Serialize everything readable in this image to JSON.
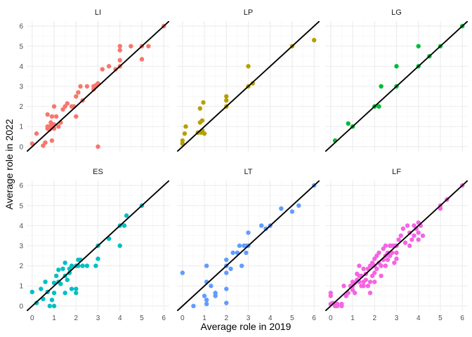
{
  "chart_data": {
    "type": "scatter",
    "xlabel": "Average role in 2019",
    "ylabel": "Average role in 2022",
    "xlim": [
      -0.25,
      6.25
    ],
    "ylim": [
      -0.25,
      6.25
    ],
    "x_ticks": [
      "0",
      "1",
      "2",
      "3",
      "4",
      "5",
      "6"
    ],
    "y_ticks": [
      "0",
      "1",
      "2",
      "3",
      "4",
      "5",
      "6"
    ],
    "reference_line": "y = x",
    "layout": "2 rows x 3 columns facets",
    "facets": [
      {
        "label": "LI",
        "color": "#F8766D",
        "points": [
          [
            0,
            0.15
          ],
          [
            0.2,
            0.65
          ],
          [
            0.5,
            0.05
          ],
          [
            0.6,
            0.2
          ],
          [
            0.7,
            0.9
          ],
          [
            0.7,
            1.0
          ],
          [
            0.7,
            1.6
          ],
          [
            0.8,
            0.85
          ],
          [
            0.8,
            1.0
          ],
          [
            0.85,
            1.2
          ],
          [
            0.9,
            0.3
          ],
          [
            0.9,
            1.5
          ],
          [
            0.9,
            1.0
          ],
          [
            1.0,
            1.1
          ],
          [
            1.0,
            0.9
          ],
          [
            1.0,
            2.0
          ],
          [
            1.1,
            1.5
          ],
          [
            1.2,
            1.0
          ],
          [
            1.3,
            1.2
          ],
          [
            1.4,
            1.85
          ],
          [
            1.5,
            2.0
          ],
          [
            1.6,
            2.15
          ],
          [
            1.8,
            2.0
          ],
          [
            1.9,
            2.0
          ],
          [
            2.0,
            1.5
          ],
          [
            2.0,
            2.5
          ],
          [
            2.1,
            2.7
          ],
          [
            2.2,
            3.0
          ],
          [
            2.3,
            2.3
          ],
          [
            2.5,
            3.0
          ],
          [
            2.8,
            2.85
          ],
          [
            2.8,
            3.0
          ],
          [
            2.9,
            3.0
          ],
          [
            2.9,
            3.05
          ],
          [
            3.0,
            3.15
          ],
          [
            3.0,
            0.0
          ],
          [
            3.2,
            3.85
          ],
          [
            3.5,
            4.0
          ],
          [
            3.8,
            3.85
          ],
          [
            4.0,
            4.0
          ],
          [
            4.0,
            4.3
          ],
          [
            4.0,
            4.8
          ],
          [
            4.0,
            5.0
          ],
          [
            4.5,
            5.0
          ],
          [
            5.0,
            4.35
          ],
          [
            5.0,
            5.0
          ],
          [
            5.3,
            5.0
          ],
          [
            6.0,
            6.0
          ]
        ]
      },
      {
        "label": "LP",
        "color": "#B79F00",
        "points": [
          [
            0,
            0.15
          ],
          [
            0,
            0.3
          ],
          [
            0.1,
            0.65
          ],
          [
            0.15,
            1.0
          ],
          [
            0.7,
            0.7
          ],
          [
            0.8,
            1.2
          ],
          [
            0.8,
            1.9
          ],
          [
            0.85,
            0.7
          ],
          [
            0.9,
            0.8
          ],
          [
            0.9,
            1.3
          ],
          [
            0.95,
            2.2
          ],
          [
            1.0,
            0.65
          ],
          [
            2.0,
            2.0
          ],
          [
            2.0,
            2.3
          ],
          [
            2.0,
            2.5
          ],
          [
            3.0,
            3.0
          ],
          [
            3.0,
            4.0
          ],
          [
            3.2,
            3.15
          ],
          [
            5.0,
            5.0
          ],
          [
            6.0,
            5.3
          ]
        ]
      },
      {
        "label": "LG",
        "color": "#00BA38",
        "points": [
          [
            0.2,
            0.3
          ],
          [
            0.8,
            1.15
          ],
          [
            1.0,
            1.0
          ],
          [
            2.0,
            2.0
          ],
          [
            2.2,
            2.0
          ],
          [
            2.3,
            3.0
          ],
          [
            3.0,
            3.0
          ],
          [
            3.0,
            4.0
          ],
          [
            4.0,
            4.0
          ],
          [
            4.0,
            5.0
          ],
          [
            4.5,
            4.5
          ],
          [
            5.0,
            5.0
          ],
          [
            6.0,
            6.0
          ]
        ]
      },
      {
        "label": "ES",
        "color": "#00BFC4",
        "points": [
          [
            0,
            0.7
          ],
          [
            0.2,
            0.15
          ],
          [
            0.4,
            0.85
          ],
          [
            0.5,
            0.35
          ],
          [
            0.6,
            1.2
          ],
          [
            0.7,
            0.7
          ],
          [
            0.8,
            0.0
          ],
          [
            0.9,
            0.3
          ],
          [
            1.0,
            0.65
          ],
          [
            1.0,
            1.15
          ],
          [
            1.0,
            0.0
          ],
          [
            1.1,
            1.5
          ],
          [
            1.2,
            1.8
          ],
          [
            1.2,
            1.2
          ],
          [
            1.3,
            1.1
          ],
          [
            1.4,
            1.85
          ],
          [
            1.5,
            0.65
          ],
          [
            1.5,
            1.5
          ],
          [
            1.5,
            2.15
          ],
          [
            1.6,
            1.3
          ],
          [
            1.7,
            1.65
          ],
          [
            1.7,
            1.85
          ],
          [
            1.8,
            0.85
          ],
          [
            1.8,
            2.0
          ],
          [
            2.0,
            2.0
          ],
          [
            2.0,
            0.85
          ],
          [
            2.0,
            0.65
          ],
          [
            2.1,
            2.3
          ],
          [
            2.1,
            2.0
          ],
          [
            2.2,
            2.3
          ],
          [
            2.3,
            2.0
          ],
          [
            2.5,
            2.0
          ],
          [
            2.9,
            2.0
          ],
          [
            3.0,
            2.35
          ],
          [
            3.0,
            3.0
          ],
          [
            3.5,
            3.35
          ],
          [
            4.0,
            3.0
          ],
          [
            4.0,
            4.0
          ],
          [
            4.2,
            4.0
          ],
          [
            4.3,
            4.5
          ],
          [
            5.0,
            5.0
          ]
        ]
      },
      {
        "label": "LT",
        "color": "#619CFF",
        "points": [
          [
            0,
            1.65
          ],
          [
            0.5,
            0.0
          ],
          [
            1.0,
            0.5
          ],
          [
            1.1,
            0.1
          ],
          [
            1.1,
            0.3
          ],
          [
            1.1,
            1.2
          ],
          [
            1.1,
            2.0
          ],
          [
            1.3,
            1.0
          ],
          [
            1.5,
            0.65
          ],
          [
            1.5,
            0.5
          ],
          [
            2.0,
            0.15
          ],
          [
            2.0,
            0.85
          ],
          [
            2.0,
            1.65
          ],
          [
            2.0,
            2.0
          ],
          [
            2.0,
            2.3
          ],
          [
            2.2,
            1.85
          ],
          [
            2.3,
            2.65
          ],
          [
            2.5,
            2.65
          ],
          [
            2.6,
            3.0
          ],
          [
            2.7,
            2.0
          ],
          [
            2.8,
            3.0
          ],
          [
            2.9,
            3.0
          ],
          [
            2.9,
            2.65
          ],
          [
            3.0,
            3.0
          ],
          [
            3.0,
            3.65
          ],
          [
            3.6,
            4.0
          ],
          [
            3.8,
            3.85
          ],
          [
            4.0,
            4.0
          ],
          [
            4.5,
            4.85
          ],
          [
            5.0,
            4.7
          ],
          [
            5.3,
            5.0
          ],
          [
            6.0,
            6.0
          ]
        ]
      },
      {
        "label": "LF",
        "color": "#F564E3",
        "points": [
          [
            0,
            0.1
          ],
          [
            0,
            0.5
          ],
          [
            0,
            0.65
          ],
          [
            0.1,
            0.15
          ],
          [
            0.2,
            0
          ],
          [
            0.3,
            0.1
          ],
          [
            0.3,
            0.0
          ],
          [
            0.5,
            0.1
          ],
          [
            0.5,
            0
          ],
          [
            0.6,
            1.0
          ],
          [
            0.7,
            0.5
          ],
          [
            0.8,
            0.65
          ],
          [
            0.9,
            1.0
          ],
          [
            1.0,
            0.8
          ],
          [
            1.0,
            1.0
          ],
          [
            1.0,
            1.2
          ],
          [
            1.1,
            1.15
          ],
          [
            1.1,
            0.65
          ],
          [
            1.2,
            1.3
          ],
          [
            1.2,
            1.6
          ],
          [
            1.3,
            1.2
          ],
          [
            1.3,
            1.5
          ],
          [
            1.3,
            2.0
          ],
          [
            1.4,
            1.0
          ],
          [
            1.4,
            1.5
          ],
          [
            1.5,
            1.85
          ],
          [
            1.5,
            1.2
          ],
          [
            1.5,
            1.0
          ],
          [
            1.6,
            1.6
          ],
          [
            1.6,
            1.3
          ],
          [
            1.7,
            1.0
          ],
          [
            1.7,
            1.85
          ],
          [
            1.8,
            1.2
          ],
          [
            1.8,
            2.0
          ],
          [
            1.8,
            0.65
          ],
          [
            1.9,
            1.5
          ],
          [
            1.9,
            2.15
          ],
          [
            2.0,
            2.0
          ],
          [
            2.0,
            1.65
          ],
          [
            2.0,
            2.35
          ],
          [
            2.0,
            1.2
          ],
          [
            2.1,
            2.5
          ],
          [
            2.1,
            1.85
          ],
          [
            2.2,
            2.15
          ],
          [
            2.2,
            2.65
          ],
          [
            2.3,
            2.0
          ],
          [
            2.3,
            1.5
          ],
          [
            2.4,
            2.3
          ],
          [
            2.4,
            2.85
          ],
          [
            2.5,
            2.5
          ],
          [
            2.5,
            2.0
          ],
          [
            2.5,
            3.0
          ],
          [
            2.6,
            2.65
          ],
          [
            2.6,
            2.3
          ],
          [
            2.7,
            3.0
          ],
          [
            2.7,
            2.5
          ],
          [
            2.8,
            3.0
          ],
          [
            2.8,
            2.65
          ],
          [
            2.9,
            2.15
          ],
          [
            2.9,
            3.0
          ],
          [
            3.0,
            3.0
          ],
          [
            3.0,
            2.65
          ],
          [
            3.0,
            2.35
          ],
          [
            3.1,
            3.3
          ],
          [
            3.2,
            3.5
          ],
          [
            3.3,
            3.85
          ],
          [
            3.4,
            3.15
          ],
          [
            3.5,
            4.0
          ],
          [
            3.6,
            3.0
          ],
          [
            3.6,
            3.65
          ],
          [
            3.7,
            3.3
          ],
          [
            3.8,
            4.0
          ],
          [
            3.8,
            3.5
          ],
          [
            3.9,
            3.85
          ],
          [
            4.0,
            4.15
          ],
          [
            4.0,
            3.65
          ],
          [
            4.0,
            3.3
          ],
          [
            4.1,
            4.0
          ],
          [
            4.2,
            3.5
          ],
          [
            5.0,
            5.0
          ],
          [
            5.0,
            4.85
          ],
          [
            5.3,
            5.3
          ],
          [
            6.0,
            6.0
          ]
        ]
      }
    ]
  }
}
